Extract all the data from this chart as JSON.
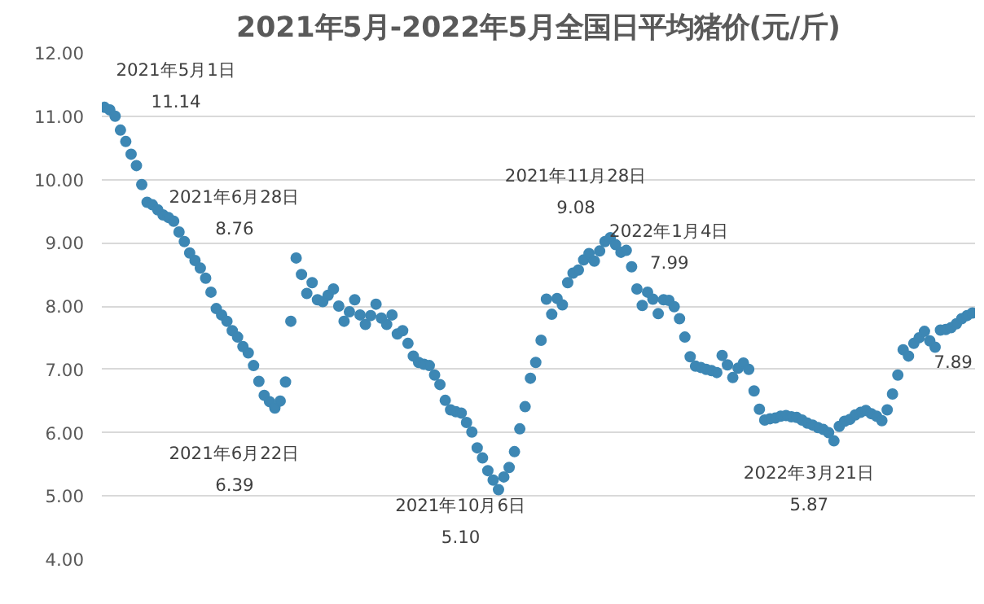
{
  "chart_data": {
    "type": "scatter",
    "title": "2021年5月-2022年5月全国日平均猪价(元/斤)",
    "categories": [
      null,
      null,
      null,
      null,
      null,
      null,
      null,
      null,
      null,
      null,
      null,
      null,
      null,
      null,
      null,
      null,
      null,
      null,
      null,
      null,
      null,
      null,
      null,
      null,
      null,
      null,
      null,
      null,
      null,
      null,
      null,
      null,
      null,
      null,
      null,
      null,
      null,
      null,
      null,
      null,
      null,
      null,
      null,
      null,
      null,
      null,
      null,
      null,
      null,
      null,
      null,
      null,
      null,
      null,
      null,
      null,
      null,
      null,
      null,
      null,
      null,
      null,
      null,
      null,
      null,
      null,
      null,
      null,
      null,
      null,
      null,
      null,
      null,
      null,
      null,
      null,
      null,
      null,
      null,
      null,
      null,
      null,
      null,
      null,
      null,
      null,
      null,
      null,
      null,
      null,
      null,
      null,
      null,
      null,
      null,
      null,
      null,
      null,
      null,
      null,
      null,
      null,
      null,
      null,
      null,
      null,
      null,
      null,
      null,
      null,
      null,
      null,
      null,
      null,
      null,
      null,
      null,
      null,
      null,
      null,
      null,
      null,
      null,
      null,
      null,
      null,
      null,
      null,
      null,
      null,
      null,
      null,
      null,
      null,
      null,
      null,
      null,
      null,
      null,
      null,
      null,
      null,
      null,
      null,
      null,
      null,
      null,
      null,
      null,
      null,
      null,
      null,
      null,
      null,
      null,
      null,
      null,
      null,
      null,
      null,
      null,
      null,
      null,
      null
    ],
    "series": [
      {
        "color": "#3d87b4",
        "values": [
          11.14,
          11.1,
          11.0,
          10.78,
          10.6,
          10.4,
          10.22,
          9.92,
          9.64,
          9.6,
          9.52,
          9.44,
          9.4,
          9.34,
          9.17,
          9.02,
          8.84,
          8.72,
          8.6,
          8.44,
          8.22,
          7.96,
          7.86,
          7.76,
          7.61,
          7.51,
          7.36,
          7.26,
          7.06,
          6.81,
          6.59,
          6.49,
          6.39,
          6.5,
          6.8,
          7.76,
          8.76,
          8.5,
          8.2,
          8.37,
          8.1,
          8.07,
          8.17,
          8.27,
          8.0,
          7.76,
          7.91,
          8.1,
          7.86,
          7.71,
          7.85,
          8.03,
          7.81,
          7.71,
          7.86,
          7.56,
          7.61,
          7.41,
          7.21,
          7.11,
          7.08,
          7.06,
          6.91,
          6.76,
          6.51,
          6.36,
          6.33,
          6.31,
          6.16,
          6.01,
          5.76,
          5.6,
          5.4,
          5.25,
          5.1,
          5.3,
          5.45,
          5.7,
          6.06,
          6.41,
          6.86,
          7.11,
          7.46,
          8.11,
          7.87,
          8.12,
          8.02,
          8.37,
          8.52,
          8.57,
          8.73,
          8.83,
          8.71,
          8.87,
          9.02,
          9.08,
          8.97,
          8.85,
          8.88,
          8.62,
          8.27,
          8.01,
          8.22,
          8.11,
          7.88,
          8.1,
          8.09,
          7.99,
          7.8,
          7.51,
          7.2,
          7.05,
          7.03,
          7.0,
          6.98,
          6.95,
          7.22,
          7.07,
          6.87,
          7.02,
          7.1,
          7.0,
          6.66,
          6.37,
          6.2,
          6.22,
          6.23,
          6.26,
          6.27,
          6.25,
          6.24,
          6.2,
          6.15,
          6.12,
          6.08,
          6.05,
          6.0,
          5.87,
          6.1,
          6.18,
          6.21,
          6.28,
          6.32,
          6.35,
          6.3,
          6.26,
          6.19,
          6.36,
          6.61,
          6.91,
          7.31,
          7.21,
          7.41,
          7.5,
          7.6,
          7.45,
          7.35,
          7.62,
          7.63,
          7.66,
          7.72,
          7.8,
          7.85,
          7.89
        ]
      }
    ],
    "ylim": [
      4,
      12
    ],
    "yticks": [
      {
        "value": 4,
        "label": "4.00"
      },
      {
        "value": 5,
        "label": "5.00"
      },
      {
        "value": 6,
        "label": "6.00"
      },
      {
        "value": 7,
        "label": "7.00"
      },
      {
        "value": 8,
        "label": "8.00"
      },
      {
        "value": 9,
        "label": "9.00"
      },
      {
        "value": 10,
        "label": "10.00"
      },
      {
        "value": 11,
        "label": "11.00"
      },
      {
        "value": 12,
        "label": "12.00"
      }
    ],
    "tick_labels": "y",
    "grid": "y",
    "marker": "circle",
    "annotations": [
      "2021年5月1日\n11.14",
      "2021年6月28日\n8.76",
      "2021年6月22日\n6.39",
      "2021年10月6日\n5.10",
      "2021年11月28日\n9.08",
      "2022年1月4日\n7.99",
      "2022年3月21日\n5.87",
      "7.89"
    ]
  }
}
